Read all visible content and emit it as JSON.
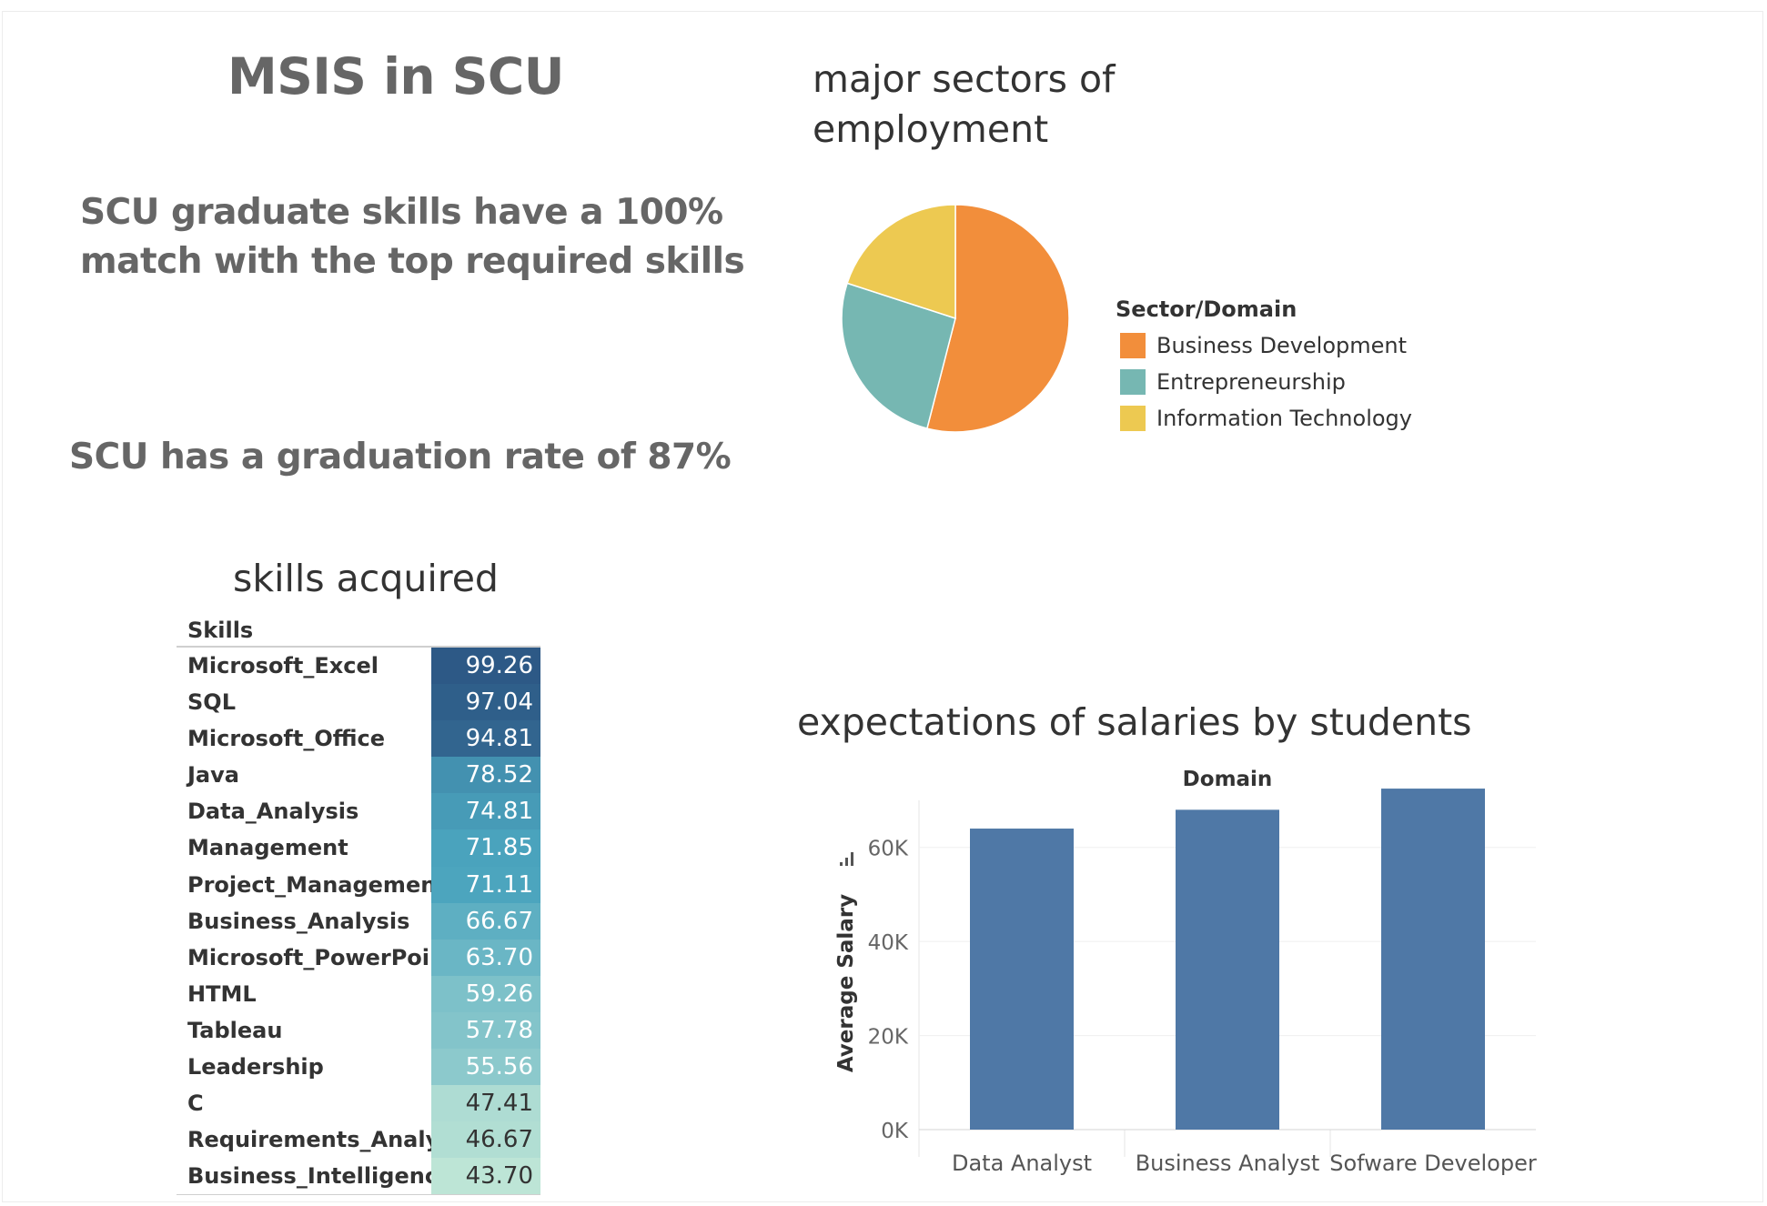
{
  "titles": {
    "main": "MSIS in SCU",
    "fact_skills_line1": "SCU graduate skills  have a 100%",
    "fact_skills_line2": "match with the top required skills",
    "fact_grad": "SCU has a graduation rate of 87%",
    "pie": "major sectors of employment",
    "skills": "skills acquired",
    "bar": "expectations of salaries by students"
  },
  "chart_data": [
    {
      "type": "pie",
      "title": "major sectors of employment",
      "legend_title": "Sector/Domain",
      "legend_placement": "right",
      "slices": [
        {
          "label": "Business Development",
          "value": 54,
          "color": "#f28e3b"
        },
        {
          "label": "Entrepreneurship",
          "value": 26,
          "color": "#76b7b2"
        },
        {
          "label": "Information Technology",
          "value": 20,
          "color": "#edc951"
        }
      ]
    },
    {
      "type": "table",
      "title": "skills acquired",
      "header": "Skills",
      "rows": [
        {
          "skill": "Microsoft_Excel",
          "value": "99.26"
        },
        {
          "skill": "SQL",
          "value": "97.04"
        },
        {
          "skill": "Microsoft_Office",
          "value": "94.81"
        },
        {
          "skill": "Java",
          "value": "78.52"
        },
        {
          "skill": "Data_Analysis",
          "value": "74.81"
        },
        {
          "skill": "Management",
          "value": "71.85"
        },
        {
          "skill": "Project_Management",
          "value": "71.11"
        },
        {
          "skill": "Business_Analysis",
          "value": "66.67"
        },
        {
          "skill": "Microsoft_PowerPoint",
          "value": "63.70"
        },
        {
          "skill": "HTML",
          "value": "59.26"
        },
        {
          "skill": "Tableau",
          "value": "57.78"
        },
        {
          "skill": "Leadership",
          "value": "55.56"
        },
        {
          "skill": "C",
          "value": "47.41"
        },
        {
          "skill": "Requirements_Analysis",
          "value": "46.67"
        },
        {
          "skill": "Business_Intelligence",
          "value": "43.70"
        }
      ],
      "color_scale": [
        "#bde5d6",
        "#2d5986"
      ]
    },
    {
      "type": "bar",
      "title": "expectations of salaries by students",
      "column_header": "Domain",
      "xlabel": "",
      "ylabel": "Average Salary",
      "categories": [
        "Data Analyst",
        "Business Analyst",
        "Sofware Developer"
      ],
      "values": [
        64000,
        68000,
        72500
      ],
      "ylim": [
        0,
        70000
      ],
      "yticks": [
        0,
        20000,
        40000,
        60000
      ],
      "ytick_labels": [
        "0K",
        "20K",
        "40K",
        "60K"
      ],
      "bar_color": "#4f78a6",
      "grid": true
    }
  ]
}
